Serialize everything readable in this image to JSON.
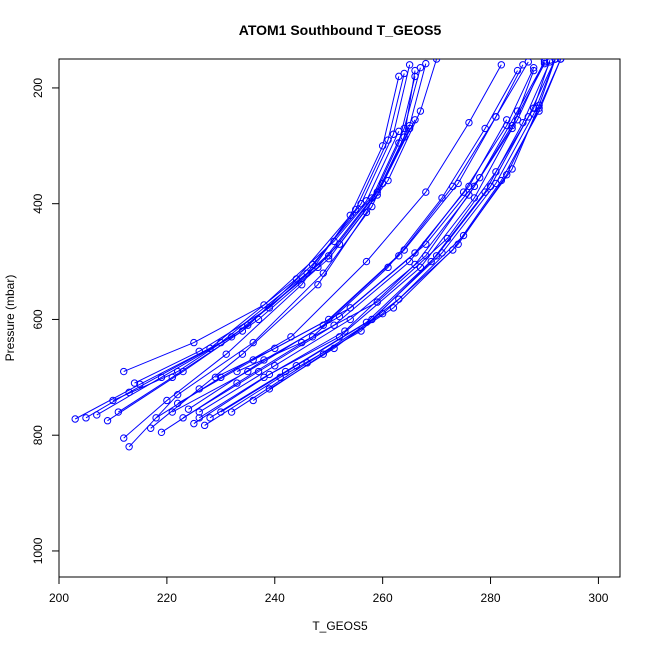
{
  "chart_data": {
    "type": "line",
    "title": "ATOM1 Southbound T_GEOS5",
    "xlabel": "T_GEOS5",
    "ylabel": "Pressure (mbar)",
    "xlim": [
      200,
      304
    ],
    "ylim": [
      1045,
      150
    ],
    "y_reversed": true,
    "grid": false,
    "legend": "none",
    "color": "#0000FF",
    "marker": "open-circle",
    "xticks": [
      200,
      220,
      240,
      260,
      280,
      300
    ],
    "yticks": [
      200,
      400,
      600,
      800,
      1000
    ],
    "series": [
      {
        "x": [
          203,
          215,
          230,
          246,
          256,
          262,
          265
        ],
        "y": [
          772,
          712,
          640,
          520,
          400,
          280,
          160
        ]
      },
      {
        "x": [
          205,
          213,
          228,
          244,
          255,
          261,
          264
        ],
        "y": [
          770,
          726,
          650,
          530,
          410,
          290,
          175
        ]
      },
      {
        "x": [
          207,
          219,
          232,
          248,
          258,
          264,
          267
        ],
        "y": [
          765,
          700,
          630,
          510,
          390,
          270,
          165
        ]
      },
      {
        "x": [
          210,
          222,
          235,
          250,
          259,
          265,
          268
        ],
        "y": [
          740,
          690,
          610,
          490,
          380,
          265,
          158
        ]
      },
      {
        "x": [
          211,
          221,
          234,
          247,
          257,
          263
        ],
        "y": [
          760,
          700,
          620,
          505,
          395,
          275
        ]
      },
      {
        "x": [
          212,
          220,
          231,
          245,
          254,
          260,
          263
        ],
        "y": [
          805,
          740,
          660,
          540,
          420,
          300,
          180
        ]
      },
      {
        "x": [
          213,
          222,
          236,
          249,
          258,
          264,
          266
        ],
        "y": [
          820,
          730,
          640,
          520,
          405,
          285,
          170
        ]
      },
      {
        "x": [
          212,
          225,
          238,
          251,
          260,
          266
        ],
        "y": [
          690,
          640,
          575,
          465,
          365,
          255
        ]
      },
      {
        "x": [
          214,
          226,
          239,
          252,
          261,
          267,
          270
        ],
        "y": [
          710,
          655,
          580,
          470,
          360,
          240,
          150
        ]
      },
      {
        "x": [
          209,
          223,
          237,
          250,
          259,
          265
        ],
        "y": [
          775,
          690,
          600,
          495,
          385,
          270
        ]
      },
      {
        "x": [
          217,
          226,
          234,
          248,
          257,
          263,
          266
        ],
        "y": [
          788,
          720,
          660,
          540,
          415,
          295,
          180
        ]
      },
      {
        "x": [
          218,
          230,
          243,
          257,
          268,
          276,
          282
        ],
        "y": [
          770,
          700,
          630,
          500,
          380,
          260,
          160
        ]
      },
      {
        "x": [
          219,
          233,
          247,
          261,
          271,
          279,
          285
        ],
        "y": [
          795,
          710,
          630,
          510,
          390,
          270,
          170
        ]
      },
      {
        "x": [
          221,
          235,
          249,
          263,
          273,
          281,
          287
        ],
        "y": [
          760,
          690,
          610,
          490,
          370,
          250,
          155
        ]
      },
      {
        "x": [
          223,
          237,
          251,
          265,
          275,
          283,
          288
        ],
        "y": [
          770,
          690,
          610,
          500,
          380,
          265,
          165
        ]
      },
      {
        "x": [
          225,
          239,
          253,
          266,
          276,
          284,
          290
        ],
        "y": [
          780,
          695,
          620,
          505,
          385,
          265,
          158
        ]
      },
      {
        "x": [
          226,
          240,
          254,
          268,
          277,
          285,
          290
        ],
        "y": [
          760,
          680,
          600,
          490,
          370,
          255,
          152
        ]
      },
      {
        "x": [
          227,
          241,
          256,
          269,
          279,
          286,
          291
        ],
        "y": [
          783,
          700,
          620,
          500,
          380,
          260,
          155
        ]
      },
      {
        "x": [
          228,
          242,
          257,
          270,
          280,
          287,
          292
        ],
        "y": [
          770,
          690,
          605,
          490,
          370,
          250,
          150
        ]
      },
      {
        "x": [
          230,
          244,
          258,
          271,
          281,
          288,
          292
        ],
        "y": [
          760,
          680,
          600,
          485,
          365,
          245,
          150
        ]
      },
      {
        "x": [
          232,
          246,
          260,
          273,
          282,
          289,
          293
        ],
        "y": [
          760,
          675,
          590,
          480,
          360,
          240,
          150
        ]
      },
      {
        "x": [
          236,
          249,
          262,
          274,
          283,
          289,
          293
        ],
        "y": [
          740,
          660,
          580,
          470,
          350,
          235,
          150
        ]
      },
      {
        "x": [
          222,
          236,
          250,
          264,
          274,
          281,
          286
        ],
        "y": [
          745,
          670,
          600,
          480,
          365,
          250,
          160
        ]
      },
      {
        "x": [
          224,
          238,
          252,
          266,
          276,
          283
        ],
        "y": [
          755,
          670,
          595,
          485,
          370,
          255
        ]
      },
      {
        "x": [
          226,
          238,
          252,
          267,
          277,
          284,
          288
        ],
        "y": [
          770,
          700,
          630,
          510,
          390,
          270,
          170
        ]
      },
      {
        "x": [
          229,
          240,
          254,
          268,
          278,
          285,
          290
        ],
        "y": [
          700,
          650,
          580,
          470,
          355,
          240,
          155
        ]
      },
      {
        "x": [
          233,
          245,
          259,
          272,
          281,
          288,
          291
        ],
        "y": [
          690,
          640,
          570,
          460,
          345,
          235,
          152
        ]
      },
      {
        "x": [
          239,
          251,
          263,
          275,
          284,
          289,
          292
        ],
        "y": [
          720,
          650,
          565,
          455,
          340,
          230,
          150
        ]
      }
    ]
  }
}
